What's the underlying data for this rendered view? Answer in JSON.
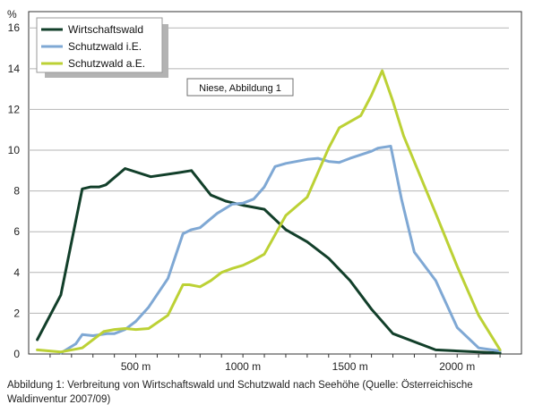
{
  "chart_data": {
    "type": "line",
    "ylabel": "%",
    "xlabel": "",
    "ylim": [
      0,
      16.8
    ],
    "xlim": [
      0,
      2300
    ],
    "y_ticks": [
      "0",
      "2",
      "4",
      "6",
      "8",
      "10",
      "12",
      "14",
      "16"
    ],
    "x_ticks": [
      {
        "label": "500 m",
        "value": 500
      },
      {
        "label": "1000 m",
        "value": 1000
      },
      {
        "label": "1500 m",
        "value": 1500
      },
      {
        "label": "2000 m",
        "value": 2000
      }
    ],
    "legend_position": "top-left",
    "grid": true,
    "annotation": "Niese, Abbildung 1",
    "series": [
      {
        "name": "Wirtschaftswald",
        "color": "#123f2a",
        "points": [
          [
            40,
            0.7
          ],
          [
            150,
            2.9
          ],
          [
            250,
            8.1
          ],
          [
            290,
            8.2
          ],
          [
            330,
            8.2
          ],
          [
            360,
            8.3
          ],
          [
            450,
            9.1
          ],
          [
            570,
            8.7
          ],
          [
            700,
            8.9
          ],
          [
            760,
            9.0
          ],
          [
            850,
            7.8
          ],
          [
            920,
            7.5
          ],
          [
            1000,
            7.3
          ],
          [
            1100,
            7.1
          ],
          [
            1200,
            6.1
          ],
          [
            1300,
            5.5
          ],
          [
            1400,
            4.7
          ],
          [
            1500,
            3.6
          ],
          [
            1600,
            2.2
          ],
          [
            1700,
            1.0
          ],
          [
            1900,
            0.2
          ],
          [
            2200,
            0.05
          ]
        ]
      },
      {
        "name": "Schutzwald i.E.",
        "color": "#7fa8d4",
        "points": [
          [
            150,
            0.05
          ],
          [
            220,
            0.5
          ],
          [
            250,
            0.95
          ],
          [
            300,
            0.9
          ],
          [
            370,
            1.0
          ],
          [
            400,
            1.0
          ],
          [
            450,
            1.2
          ],
          [
            500,
            1.6
          ],
          [
            560,
            2.3
          ],
          [
            650,
            3.7
          ],
          [
            720,
            5.9
          ],
          [
            760,
            6.1
          ],
          [
            800,
            6.2
          ],
          [
            880,
            6.9
          ],
          [
            950,
            7.35
          ],
          [
            1000,
            7.4
          ],
          [
            1050,
            7.6
          ],
          [
            1100,
            8.2
          ],
          [
            1150,
            9.2
          ],
          [
            1200,
            9.35
          ],
          [
            1300,
            9.55
          ],
          [
            1350,
            9.6
          ],
          [
            1400,
            9.45
          ],
          [
            1450,
            9.4
          ],
          [
            1500,
            9.6
          ],
          [
            1600,
            9.95
          ],
          [
            1630,
            10.1
          ],
          [
            1690,
            10.2
          ],
          [
            1740,
            7.6
          ],
          [
            1800,
            5.0
          ],
          [
            1900,
            3.6
          ],
          [
            2000,
            1.3
          ],
          [
            2100,
            0.3
          ],
          [
            2200,
            0.15
          ]
        ]
      },
      {
        "name": "Schutzwald a.E.",
        "color": "#bcd135",
        "points": [
          [
            40,
            0.2
          ],
          [
            150,
            0.1
          ],
          [
            250,
            0.3
          ],
          [
            350,
            1.1
          ],
          [
            400,
            1.2
          ],
          [
            450,
            1.25
          ],
          [
            500,
            1.2
          ],
          [
            560,
            1.25
          ],
          [
            650,
            1.9
          ],
          [
            720,
            3.4
          ],
          [
            750,
            3.4
          ],
          [
            800,
            3.3
          ],
          [
            850,
            3.6
          ],
          [
            900,
            4.0
          ],
          [
            950,
            4.2
          ],
          [
            1000,
            4.35
          ],
          [
            1050,
            4.6
          ],
          [
            1100,
            4.9
          ],
          [
            1200,
            6.8
          ],
          [
            1300,
            7.7
          ],
          [
            1400,
            10.1
          ],
          [
            1450,
            11.1
          ],
          [
            1550,
            11.7
          ],
          [
            1600,
            12.7
          ],
          [
            1650,
            13.9
          ],
          [
            1700,
            12.4
          ],
          [
            1750,
            10.7
          ],
          [
            1900,
            6.9
          ],
          [
            2000,
            4.3
          ],
          [
            2100,
            1.9
          ],
          [
            2200,
            0.2
          ]
        ]
      }
    ]
  },
  "caption": {
    "line1": "Abbildung 1: Verbreitung von Wirtschaftswald und Schutzwald nach Seehöhe (Quelle: Österreichische",
    "line2": "Waldinventur 2007/09)"
  }
}
